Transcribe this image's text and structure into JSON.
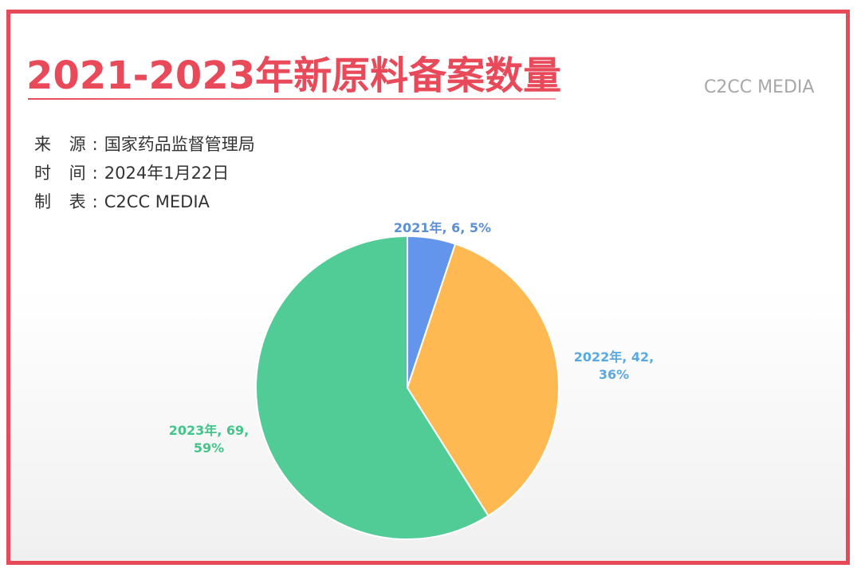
{
  "header": {
    "title": "2021-2023年新原料备案数量",
    "watermark": "C2CC MEDIA"
  },
  "meta": [
    {
      "label": "来 源:",
      "value": "国家药品监督管理局"
    },
    {
      "label": "时 间:",
      "value": "2024年1月22日"
    },
    {
      "label": "制 表:",
      "value": "C2CC  MEDIA"
    }
  ],
  "chart_data": {
    "type": "pie",
    "title": "2021-2023年新原料备案数量",
    "categories": [
      "2021年",
      "2022年",
      "2023年"
    ],
    "values": [
      6,
      42,
      69
    ],
    "percents": [
      "5%",
      "36%",
      "59%"
    ],
    "labels": [
      [
        "2021年, 6, 5%"
      ],
      [
        "2022年, 42,",
        "36%"
      ],
      [
        "2023年, 69,",
        "59%"
      ]
    ],
    "colors": [
      "#6495ed",
      "#ffb952",
      "#52cc96"
    ],
    "label_colors": [
      "#5b8fd8",
      "#5aa9e0",
      "#44c48a"
    ],
    "start_angle": "12 o'clock",
    "direction": "clockwise"
  }
}
